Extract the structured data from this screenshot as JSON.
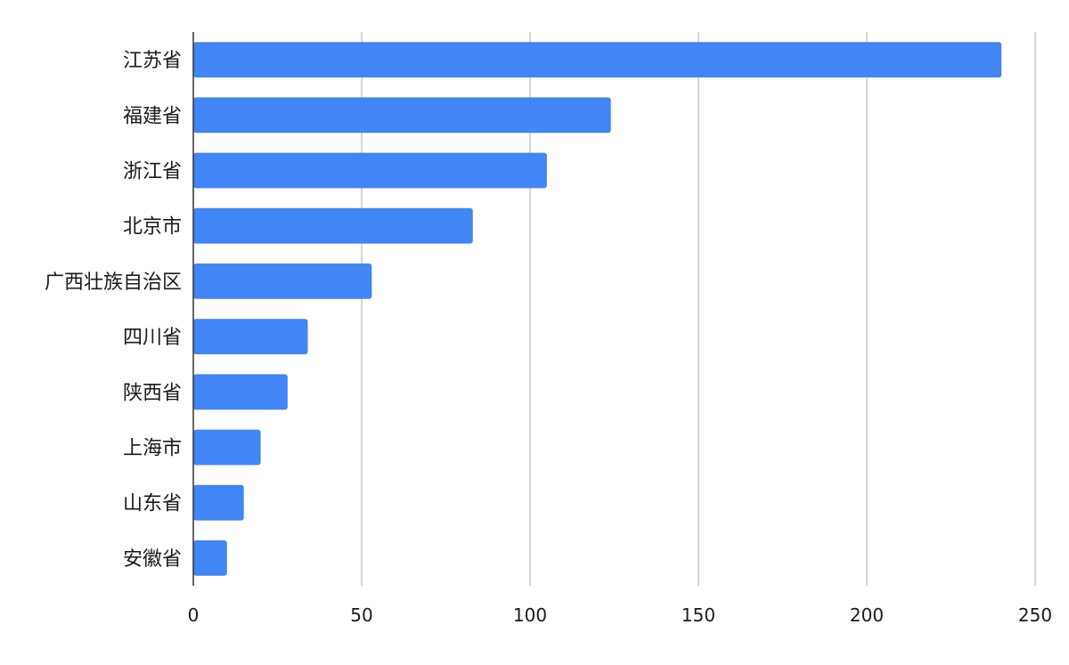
{
  "chart_data": {
    "type": "bar",
    "orientation": "horizontal",
    "categories": [
      "江苏省",
      "福建省",
      "浙江省",
      "北京市",
      "广西壮族自治区",
      "四川省",
      "陕西省",
      "上海市",
      "山东省",
      "安徽省"
    ],
    "values": [
      240,
      124,
      105,
      83,
      53,
      34,
      28,
      20,
      15,
      10
    ],
    "xlim": [
      0,
      250
    ],
    "xticks": [
      0,
      50,
      100,
      150,
      200,
      250
    ],
    "title": "",
    "xlabel": "",
    "ylabel": "",
    "grid": "vertical",
    "legend": "none",
    "bar_color": "#4285F4"
  }
}
